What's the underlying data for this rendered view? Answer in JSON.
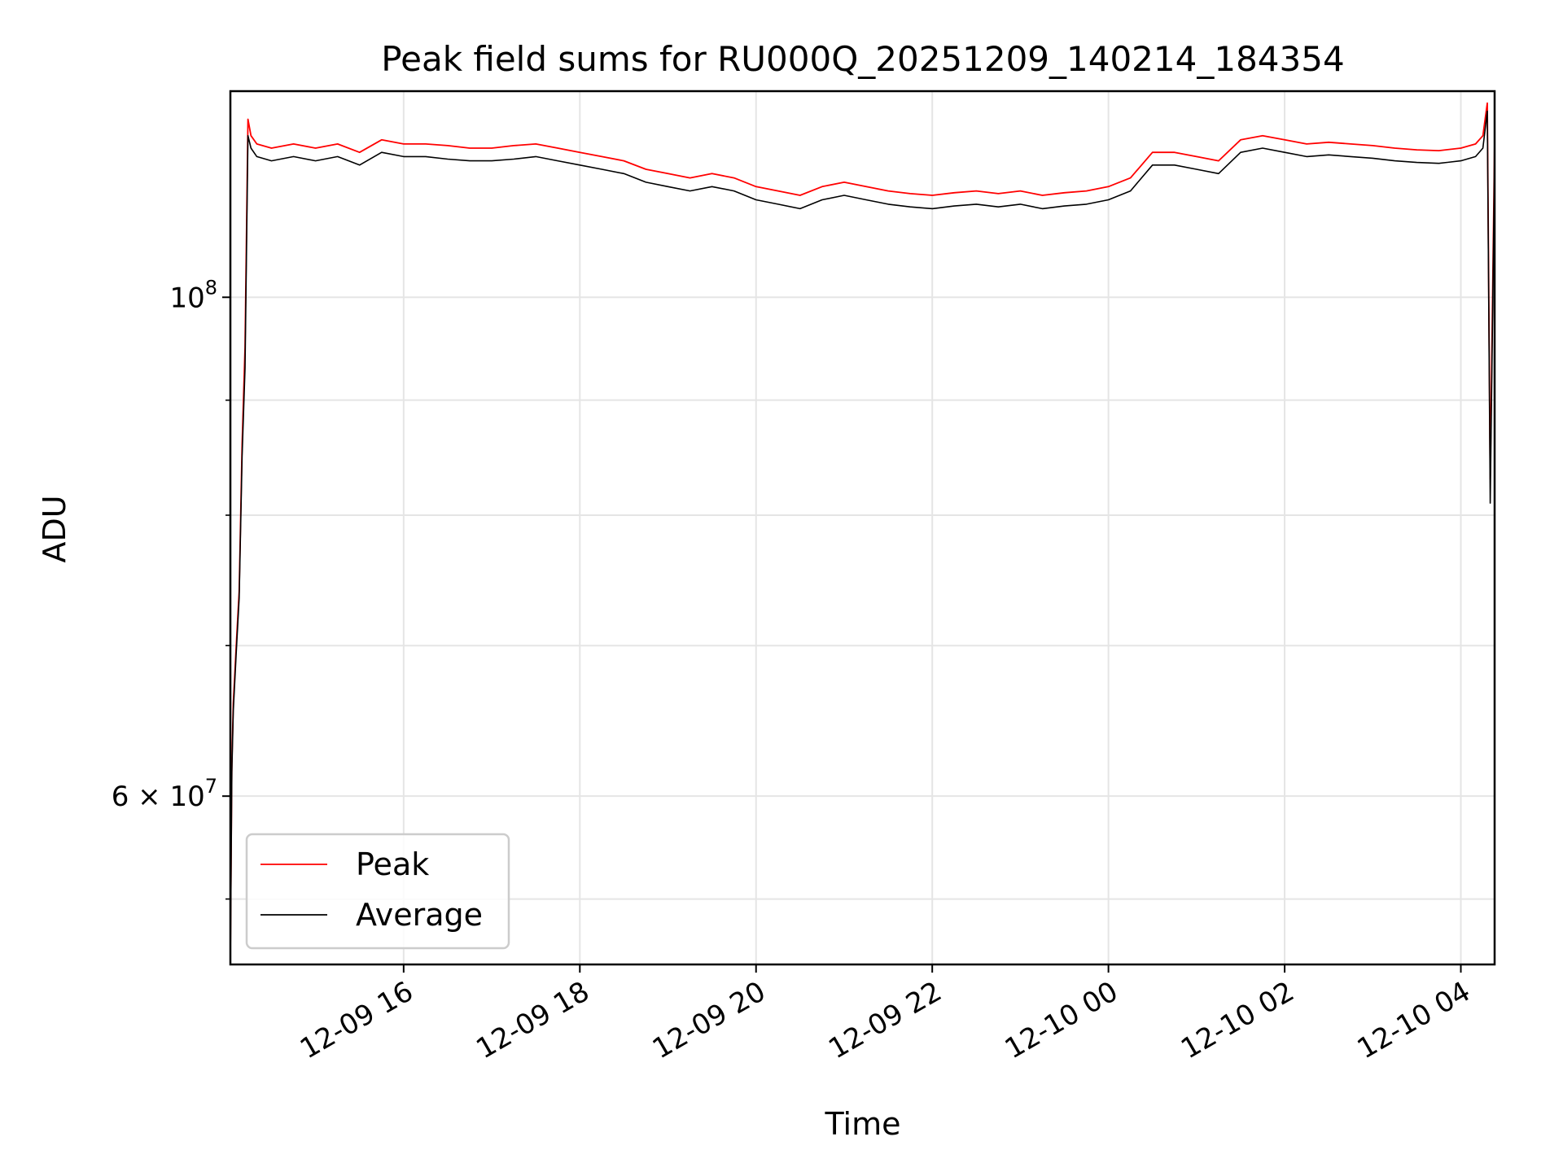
{
  "chart_data": {
    "type": "line",
    "title": "Peak field sums for RU000Q_20251209_140214_184354",
    "xlabel": "Time",
    "ylabel": "ADU",
    "y_scale": "log",
    "grid": true,
    "legend_placement": "lower-left",
    "xlim": [
      "2025-12-09 14:02",
      "2025-12-10 04:23"
    ],
    "ylim": [
      50500000,
      123500000
    ],
    "x_ticks": [
      "12-09 16",
      "12-09 18",
      "12-09 20",
      "12-09 22",
      "12-10 00",
      "12-10 02",
      "12-10 04"
    ],
    "x_tick_times": [
      "2025-12-09 16:00",
      "2025-12-09 18:00",
      "2025-12-09 20:00",
      "2025-12-09 22:00",
      "2025-12-10 00:00",
      "2025-12-10 02:00",
      "2025-12-10 04:00"
    ],
    "y_ticks": [
      {
        "label": "10",
        "exp": "8",
        "value": 100000000
      },
      {
        "label": "6 × 10",
        "exp": "7",
        "value": 60000000
      }
    ],
    "y_minor_ticks": [
      54000000,
      70000000,
      80000000,
      90000000
    ],
    "series": [
      {
        "name": "Peak",
        "color": "#ff0000",
        "x": [
          "2025-12-09 14:02",
          "2025-12-09 14:03",
          "2025-12-09 14:04",
          "2025-12-09 14:06",
          "2025-12-09 14:08",
          "2025-12-09 14:10",
          "2025-12-09 14:12",
          "2025-12-09 14:14",
          "2025-12-09 14:16",
          "2025-12-09 14:20",
          "2025-12-09 14:30",
          "2025-12-09 14:45",
          "2025-12-09 15:00",
          "2025-12-09 15:15",
          "2025-12-09 15:30",
          "2025-12-09 15:45",
          "2025-12-09 16:00",
          "2025-12-09 16:15",
          "2025-12-09 16:30",
          "2025-12-09 16:45",
          "2025-12-09 17:00",
          "2025-12-09 17:15",
          "2025-12-09 17:30",
          "2025-12-09 17:45",
          "2025-12-09 18:00",
          "2025-12-09 18:15",
          "2025-12-09 18:30",
          "2025-12-09 18:45",
          "2025-12-09 19:00",
          "2025-12-09 19:15",
          "2025-12-09 19:30",
          "2025-12-09 19:45",
          "2025-12-09 20:00",
          "2025-12-09 20:15",
          "2025-12-09 20:30",
          "2025-12-09 20:45",
          "2025-12-09 21:00",
          "2025-12-09 21:15",
          "2025-12-09 21:30",
          "2025-12-09 21:45",
          "2025-12-09 22:00",
          "2025-12-09 22:15",
          "2025-12-09 22:30",
          "2025-12-09 22:45",
          "2025-12-09 23:00",
          "2025-12-09 23:15",
          "2025-12-09 23:30",
          "2025-12-09 23:45",
          "2025-12-10 00:00",
          "2025-12-10 00:15",
          "2025-12-10 00:30",
          "2025-12-10 00:45",
          "2025-12-10 01:00",
          "2025-12-10 01:15",
          "2025-12-10 01:30",
          "2025-12-10 01:45",
          "2025-12-10 02:00",
          "2025-12-10 02:15",
          "2025-12-10 02:30",
          "2025-12-10 02:45",
          "2025-12-10 03:00",
          "2025-12-10 03:15",
          "2025-12-10 03:30",
          "2025-12-10 03:45",
          "2025-12-10 04:00",
          "2025-12-10 04:10",
          "2025-12-10 04:15",
          "2025-12-10 04:18",
          "2025-12-10 04:20",
          "2025-12-10 04:23"
        ],
        "values": [
          51000000,
          62000000,
          66000000,
          70000000,
          74000000,
          86000000,
          95000000,
          120000000,
          118000000,
          117000000,
          116500000,
          117000000,
          116500000,
          117000000,
          116000000,
          117500000,
          117000000,
          117000000,
          116800000,
          116500000,
          116500000,
          116800000,
          117000000,
          116500000,
          116000000,
          115500000,
          115000000,
          114000000,
          113500000,
          113000000,
          113500000,
          113000000,
          112000000,
          111500000,
          111000000,
          112000000,
          112500000,
          112000000,
          111500000,
          111200000,
          111000000,
          111300000,
          111500000,
          111200000,
          111500000,
          111000000,
          111300000,
          111500000,
          112000000,
          113000000,
          116000000,
          116000000,
          115500000,
          115000000,
          117500000,
          118000000,
          117500000,
          117000000,
          117200000,
          117000000,
          116800000,
          116500000,
          116300000,
          116200000,
          116500000,
          117000000,
          118000000,
          122000000,
          83000000,
          117500000
        ]
      },
      {
        "name": "Average",
        "color": "#000000",
        "x": [
          "2025-12-09 14:02",
          "2025-12-09 14:03",
          "2025-12-09 14:04",
          "2025-12-09 14:06",
          "2025-12-09 14:08",
          "2025-12-09 14:10",
          "2025-12-09 14:12",
          "2025-12-09 14:14",
          "2025-12-09 14:16",
          "2025-12-09 14:20",
          "2025-12-09 14:30",
          "2025-12-09 14:45",
          "2025-12-09 15:00",
          "2025-12-09 15:15",
          "2025-12-09 15:30",
          "2025-12-09 15:45",
          "2025-12-09 16:00",
          "2025-12-09 16:15",
          "2025-12-09 16:30",
          "2025-12-09 16:45",
          "2025-12-09 17:00",
          "2025-12-09 17:15",
          "2025-12-09 17:30",
          "2025-12-09 17:45",
          "2025-12-09 18:00",
          "2025-12-09 18:15",
          "2025-12-09 18:30",
          "2025-12-09 18:45",
          "2025-12-09 19:00",
          "2025-12-09 19:15",
          "2025-12-09 19:30",
          "2025-12-09 19:45",
          "2025-12-09 20:00",
          "2025-12-09 20:15",
          "2025-12-09 20:30",
          "2025-12-09 20:45",
          "2025-12-09 21:00",
          "2025-12-09 21:15",
          "2025-12-09 21:30",
          "2025-12-09 21:45",
          "2025-12-09 22:00",
          "2025-12-09 22:15",
          "2025-12-09 22:30",
          "2025-12-09 22:45",
          "2025-12-09 23:00",
          "2025-12-09 23:15",
          "2025-12-09 23:30",
          "2025-12-09 23:45",
          "2025-12-10 00:00",
          "2025-12-10 00:15",
          "2025-12-10 00:30",
          "2025-12-10 00:45",
          "2025-12-10 01:00",
          "2025-12-10 01:15",
          "2025-12-10 01:30",
          "2025-12-10 01:45",
          "2025-12-10 02:00",
          "2025-12-10 02:15",
          "2025-12-10 02:30",
          "2025-12-10 02:45",
          "2025-12-10 03:00",
          "2025-12-10 03:15",
          "2025-12-10 03:30",
          "2025-12-10 03:45",
          "2025-12-10 04:00",
          "2025-12-10 04:10",
          "2025-12-10 04:15",
          "2025-12-10 04:18",
          "2025-12-10 04:20",
          "2025-12-10 04:23"
        ],
        "values": [
          50500000,
          61500000,
          65500000,
          69500000,
          73500000,
          85000000,
          93000000,
          118000000,
          116500000,
          115500000,
          115000000,
          115500000,
          115000000,
          115500000,
          114500000,
          116000000,
          115500000,
          115500000,
          115200000,
          115000000,
          115000000,
          115200000,
          115500000,
          115000000,
          114500000,
          114000000,
          113500000,
          112500000,
          112000000,
          111500000,
          112000000,
          111500000,
          110500000,
          110000000,
          109500000,
          110500000,
          111000000,
          110500000,
          110000000,
          109700000,
          109500000,
          109800000,
          110000000,
          109700000,
          110000000,
          109500000,
          109800000,
          110000000,
          110500000,
          111500000,
          114500000,
          114500000,
          114000000,
          113500000,
          116000000,
          116500000,
          116000000,
          115500000,
          115700000,
          115500000,
          115300000,
          115000000,
          114800000,
          114700000,
          115000000,
          115500000,
          116500000,
          121000000,
          81000000,
          116000000
        ]
      }
    ]
  }
}
